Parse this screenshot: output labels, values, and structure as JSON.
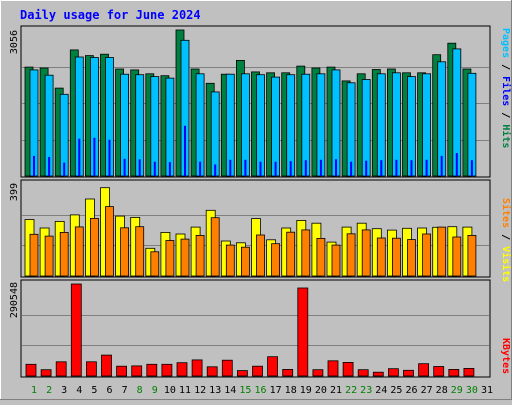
{
  "chart_data": [
    {
      "type": "bar",
      "title": "Daily usage for June 2024",
      "categories": [
        "1",
        "2",
        "3",
        "4",
        "5",
        "6",
        "7",
        "8",
        "9",
        "10",
        "11",
        "12",
        "13",
        "14",
        "15",
        "16",
        "17",
        "18",
        "19",
        "20",
        "21",
        "22",
        "23",
        "24",
        "25",
        "26",
        "27",
        "28",
        "29",
        "30",
        "31"
      ],
      "weekend_days": [
        "1",
        "2",
        "8",
        "9",
        "15",
        "16",
        "22",
        "23",
        "29",
        "30"
      ],
      "panels": [
        {
          "name": "hits-files-pages",
          "ymax_label": "3056",
          "ylim": [
            0,
            3056
          ],
          "legend": [
            "Pages",
            "Files",
            "Hits"
          ],
          "series": [
            {
              "name": "Hits",
              "color": "#008040",
              "values": [
                2280,
                2260,
                1840,
                2640,
                2520,
                2550,
                2240,
                2220,
                2140,
                2100,
                3056,
                2240,
                1940,
                2130,
                2420,
                2180,
                2160,
                2160,
                2300,
                2260,
                2280,
                1990,
                2140,
                2230,
                2240,
                2160,
                2160,
                2540,
                2780,
                2240,
                0
              ]
            },
            {
              "name": "Files",
              "color": "#00c0ff",
              "values": [
                2220,
                2110,
                1710,
                2490,
                2480,
                2480,
                2130,
                2120,
                2080,
                2050,
                2840,
                2140,
                1760,
                2130,
                2140,
                2120,
                2070,
                2120,
                2130,
                2140,
                2220,
                1950,
                2020,
                2140,
                2160,
                2080,
                2140,
                2390,
                2660,
                2150,
                0
              ]
            },
            {
              "name": "Pages",
              "color": "#0000ff",
              "values": [
                420,
                400,
                280,
                780,
                800,
                760,
                360,
                350,
                300,
                290,
                1050,
                300,
                240,
                340,
                340,
                300,
                300,
                310,
                330,
                340,
                350,
                300,
                320,
                330,
                340,
                330,
                340,
                420,
                480,
                330,
                0
              ]
            }
          ]
        },
        {
          "name": "visits-sites",
          "ymax_label": "399",
          "ylim": [
            0,
            399
          ],
          "legend": [
            "Sites",
            "Visits"
          ],
          "series": [
            {
              "name": "Visits",
              "color": "#ffff00",
              "values": [
                245,
                208,
                237,
                265,
                334,
                383,
                260,
                254,
                120,
                189,
                182,
                212,
                285,
                152,
                144,
                249,
                157,
                208,
                241,
                229,
                147,
                212,
                229,
                205,
                199,
                207,
                208,
                211,
                214,
                212,
                0
              ]
            },
            {
              "name": "Sites",
              "color": "#ff8000",
              "values": [
                181,
                173,
                189,
                213,
                250,
                301,
                209,
                214,
                105,
                154,
                160,
                176,
                253,
                134,
                125,
                178,
                140,
                190,
                200,
                163,
                134,
                183,
                200,
                165,
                164,
                158,
                182,
                212,
                169,
                176,
                0
              ]
            }
          ]
        },
        {
          "name": "kbytes",
          "ymax_label": "290548",
          "ylim": [
            0,
            290548
          ],
          "legend": [
            "KBytes"
          ],
          "series": [
            {
              "name": "KBytes",
              "color": "#ff0000",
              "values": [
                37000,
                20000,
                45000,
                290548,
                45000,
                66000,
                31000,
                32000,
                37000,
                37000,
                42000,
                51000,
                29000,
                50000,
                17000,
                31000,
                61000,
                21000,
                278000,
                20000,
                48000,
                43000,
                20000,
                12000,
                23000,
                18000,
                39000,
                30000,
                21000,
                24000,
                0
              ]
            }
          ]
        }
      ]
    }
  ]
}
